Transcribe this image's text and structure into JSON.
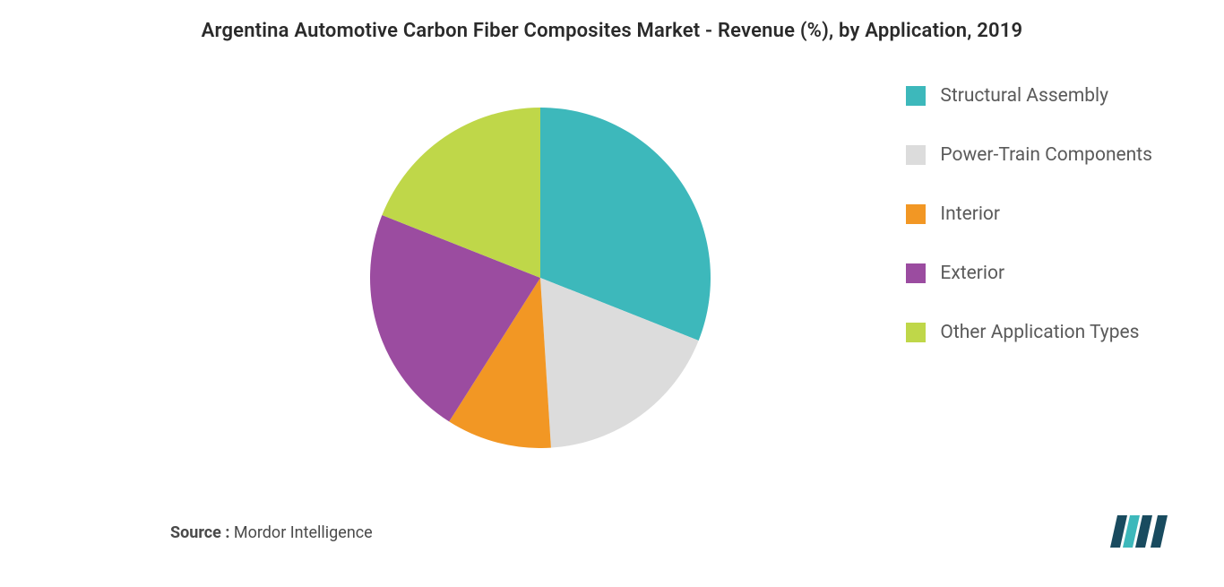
{
  "title": "Argentina Automotive Carbon Fiber Composites Market - Revenue (%), by Application, 2019",
  "chart": {
    "type": "pie",
    "background_color": "#ffffff",
    "radius": 190,
    "slices": [
      {
        "label": "Structural Assembly",
        "value": 31,
        "color": "#3db8bb"
      },
      {
        "label": "Power-Train Components",
        "value": 18,
        "color": "#dcdcdc"
      },
      {
        "label": "Interior",
        "value": 10,
        "color": "#f29724"
      },
      {
        "label": "Exterior",
        "value": 22,
        "color": "#9b4ca0"
      },
      {
        "label": "Other Application Types",
        "value": 19,
        "color": "#bfd749"
      }
    ],
    "legend": {
      "position": "right",
      "swatch_size": 22,
      "label_fontsize": 21,
      "label_color": "#5a5a5a",
      "gap": 42
    },
    "title_fontsize": 22,
    "title_color": "#2a2a2a"
  },
  "source": {
    "label": "Source :",
    "value": " Mordor Intelligence",
    "fontsize": 18,
    "label_weight": 700
  },
  "logo": {
    "bars_color": "#194b5f",
    "accent_color": "#3db8bb"
  }
}
